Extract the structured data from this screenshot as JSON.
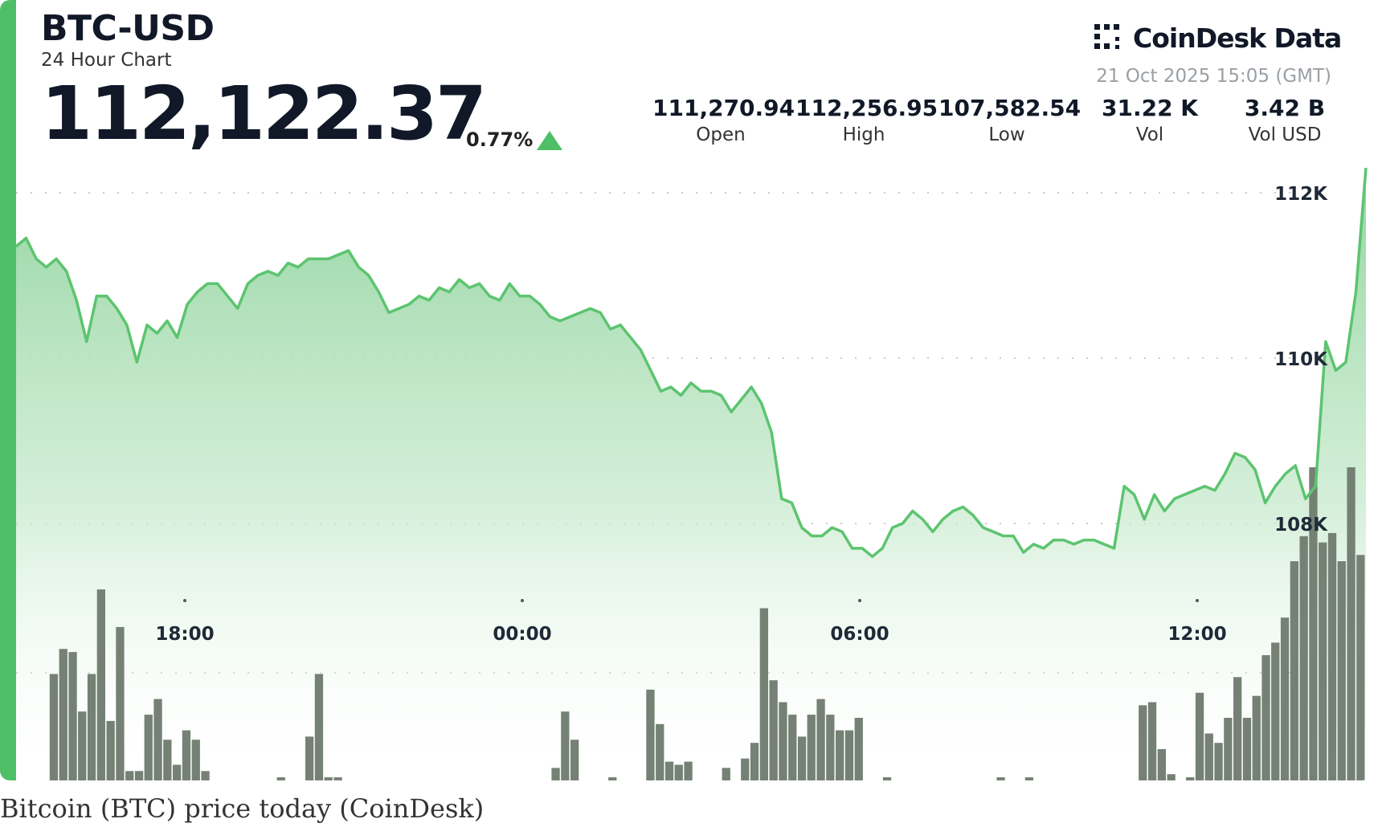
{
  "header": {
    "pair": "BTC-USD",
    "subtitle": "24 Hour Chart",
    "price": "112,122.37",
    "change": "0.77%"
  },
  "brand": {
    "logo_text": "CoinDesk Data",
    "timestamp": "21 Oct 2025 15:05 (GMT)"
  },
  "stats": [
    {
      "value": "111,270.94",
      "label": "Open"
    },
    {
      "value": "112,256.95",
      "label": "High"
    },
    {
      "value": "107,582.54",
      "label": "Low"
    },
    {
      "value": "31.22 K",
      "label": "Vol"
    },
    {
      "value": "3.42 B",
      "label": "Vol USD"
    }
  ],
  "caption": "Bitcoin (BTC) price today (CoinDesk)",
  "colors": {
    "accent": "#4fbf67",
    "line": "#5cc46f",
    "volume": "#6e7a6e",
    "text": "#111827"
  },
  "chart_data": {
    "type": "line",
    "x_tick_labels": [
      "18:00",
      "00:00",
      "06:00",
      "12:00"
    ],
    "x_tick_hours": [
      3,
      9,
      15,
      21
    ],
    "xlim_hours": [
      0,
      24
    ],
    "y_tick_labels": [
      "112K",
      "110K",
      "108K"
    ],
    "y_tick_values": [
      112000,
      110000,
      108000
    ],
    "ylim": [
      105000,
      112300
    ],
    "price_series": [
      111350,
      111450,
      111200,
      111100,
      111200,
      111050,
      110700,
      110200,
      110750,
      110750,
      110600,
      110400,
      109950,
      110400,
      110300,
      110450,
      110250,
      110650,
      110800,
      110900,
      110900,
      110750,
      110600,
      110900,
      111000,
      111050,
      111000,
      111150,
      111100,
      111200,
      111200,
      111200,
      111250,
      111300,
      111100,
      111000,
      110800,
      110550,
      110600,
      110650,
      110750,
      110700,
      110850,
      110800,
      110950,
      110850,
      110900,
      110750,
      110700,
      110900,
      110750,
      110750,
      110650,
      110500,
      110450,
      110500,
      110550,
      110600,
      110550,
      110350,
      110400,
      110250,
      110100,
      109850,
      109600,
      109650,
      109550,
      109700,
      109600,
      109600,
      109550,
      109350,
      109500,
      109650,
      109450,
      109100,
      108300,
      108250,
      107950,
      107850,
      107850,
      107950,
      107900,
      107700,
      107700,
      107600,
      107700,
      107950,
      108000,
      108150,
      108050,
      107900,
      108050,
      108150,
      108200,
      108100,
      107950,
      107900,
      107850,
      107850,
      107650,
      107750,
      107700,
      107800,
      107800,
      107750,
      107800,
      107800,
      107750,
      107700,
      108450,
      108350,
      108050,
      108350,
      108150,
      108300,
      108350,
      108400,
      108450,
      108400,
      108600,
      108850,
      108800,
      108650,
      108250,
      108450,
      108600,
      108700,
      108300,
      108450,
      110200,
      109850,
      109950,
      110800,
      112300
    ],
    "volume_series": [
      0,
      0.34,
      0.42,
      0.41,
      0.22,
      0.34,
      0.61,
      0.19,
      0.49,
      0.03,
      0.03,
      0.21,
      0.26,
      0.13,
      0.05,
      0.16,
      0.13,
      0.03,
      0,
      0,
      0,
      0,
      0,
      0,
      0,
      0.01,
      0,
      0,
      0.14,
      0.34,
      0.01,
      0.01,
      0,
      0,
      0,
      0,
      0,
      0,
      0,
      0,
      0,
      0,
      0,
      0,
      0,
      0,
      0,
      0,
      0,
      0,
      0,
      0,
      0,
      0,
      0.04,
      0.22,
      0.13,
      0,
      0,
      0,
      0.01,
      0,
      0,
      0,
      0.29,
      0.18,
      0.06,
      0.05,
      0.06,
      0,
      0,
      0,
      0.04,
      0,
      0.07,
      0.12,
      0.55,
      0.32,
      0.25,
      0.21,
      0.14,
      0.21,
      0.26,
      0.21,
      0.16,
      0.16,
      0.2,
      0,
      0,
      0.01,
      0,
      0,
      0,
      0,
      0,
      0,
      0,
      0,
      0,
      0,
      0,
      0.01,
      0,
      0,
      0.01,
      0,
      0,
      0,
      0,
      0,
      0,
      0,
      0,
      0,
      0,
      0,
      0.24,
      0.25,
      0.1,
      0.02,
      0,
      0.01,
      0.28,
      0.15,
      0.12,
      0.2,
      0.33,
      0.2,
      0.27,
      0.4,
      0.44,
      0.52,
      0.7,
      0.78,
      1.0,
      0.76,
      0.79,
      0.7,
      1.0,
      0.72
    ],
    "grid": true,
    "legend": "none"
  }
}
